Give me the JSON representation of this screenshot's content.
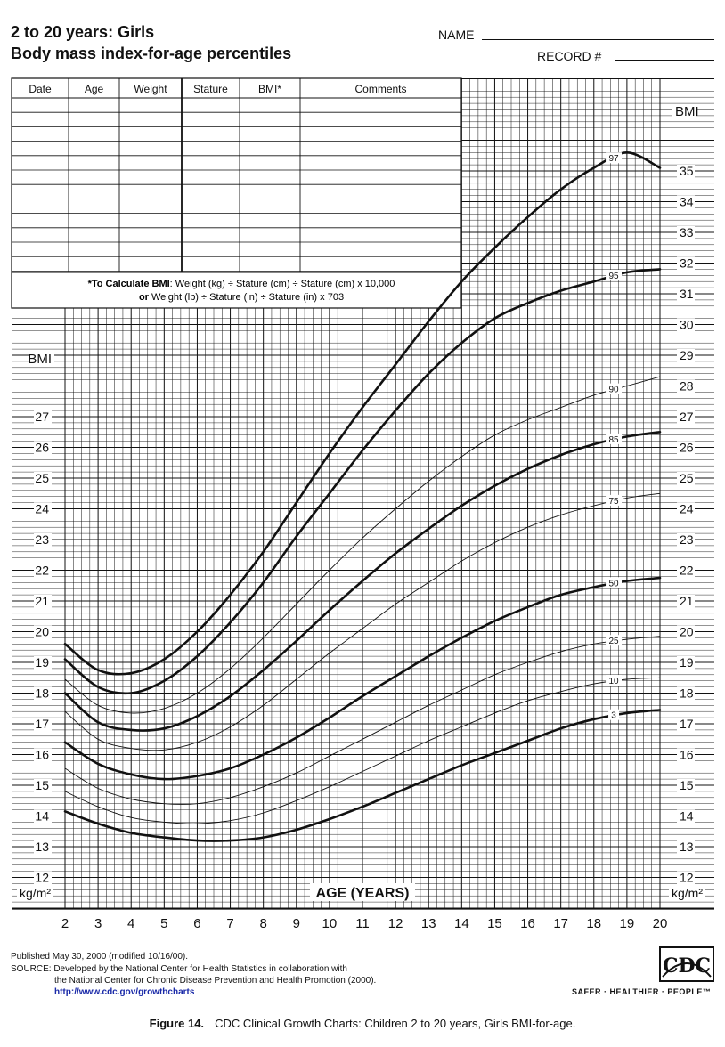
{
  "header": {
    "title_line1": "2 to 20 years: Girls",
    "title_line2": "Body mass index-for-age percentiles",
    "name_label": "NAME",
    "record_label": "RECORD #"
  },
  "record_table": {
    "columns": [
      "Date",
      "Age",
      "Weight",
      "Stature",
      "BMI*",
      "Comments"
    ],
    "blank_rows": 12,
    "formula_line1_bold": "*To Calculate BMI",
    "formula_line1_rest": ": Weight (kg) ÷ Stature (cm) ÷ Stature (cm) x 10,000",
    "formula_line2_bold": "or",
    "formula_line2_rest": " Weight (lb) ÷ Stature (in) ÷ Stature (in) x 703"
  },
  "chart_data": {
    "type": "line",
    "xlabel": "AGE (YEARS)",
    "ylabel": "BMI",
    "unit_label": "kg/m²",
    "xlim": [
      2,
      20
    ],
    "ylim": [
      11,
      36
    ],
    "x_ticks": [
      2,
      3,
      4,
      5,
      6,
      7,
      8,
      9,
      10,
      11,
      12,
      13,
      14,
      15,
      16,
      17,
      18,
      19,
      20
    ],
    "y_ticks_right": [
      12,
      13,
      14,
      15,
      16,
      17,
      18,
      19,
      20,
      21,
      22,
      23,
      24,
      25,
      26,
      27,
      28,
      29,
      30,
      31,
      32,
      33,
      34,
      35
    ],
    "y_ticks_left": [
      12,
      13,
      14,
      15,
      16,
      17,
      18,
      19,
      20,
      21,
      22,
      23,
      24,
      25,
      26,
      27
    ],
    "grid": true,
    "x": [
      2,
      3,
      4,
      5,
      6,
      7,
      8,
      9,
      10,
      11,
      12,
      13,
      14,
      15,
      16,
      17,
      18,
      19,
      20
    ],
    "series": [
      {
        "name": "97",
        "values": [
          19.6,
          18.75,
          18.65,
          19.1,
          20.0,
          21.2,
          22.6,
          24.2,
          25.8,
          27.3,
          28.7,
          30.1,
          31.4,
          32.5,
          33.5,
          34.4,
          35.1,
          35.6,
          35.1
        ],
        "bold": true
      },
      {
        "name": "95",
        "values": [
          19.1,
          18.2,
          18.0,
          18.4,
          19.2,
          20.3,
          21.6,
          23.1,
          24.5,
          25.9,
          27.2,
          28.4,
          29.4,
          30.2,
          30.7,
          31.1,
          31.4,
          31.7,
          31.8
        ],
        "bold": true
      },
      {
        "name": "90",
        "values": [
          18.45,
          17.6,
          17.35,
          17.5,
          18.0,
          18.8,
          19.8,
          20.9,
          22.0,
          23.05,
          24.0,
          24.9,
          25.7,
          26.4,
          26.9,
          27.3,
          27.7,
          28.0,
          28.3
        ],
        "bold": false
      },
      {
        "name": "85",
        "values": [
          18.0,
          17.05,
          16.8,
          16.85,
          17.25,
          17.9,
          18.75,
          19.7,
          20.7,
          21.65,
          22.55,
          23.35,
          24.1,
          24.75,
          25.3,
          25.75,
          26.1,
          26.35,
          26.5
        ],
        "bold": true
      },
      {
        "name": "75",
        "values": [
          17.4,
          16.5,
          16.2,
          16.15,
          16.4,
          16.9,
          17.6,
          18.45,
          19.3,
          20.1,
          20.9,
          21.6,
          22.3,
          22.9,
          23.4,
          23.8,
          24.1,
          24.35,
          24.5
        ],
        "bold": false
      },
      {
        "name": "50",
        "values": [
          16.4,
          15.7,
          15.35,
          15.2,
          15.3,
          15.55,
          16.0,
          16.55,
          17.2,
          17.9,
          18.55,
          19.2,
          19.8,
          20.35,
          20.8,
          21.2,
          21.45,
          21.65,
          21.75
        ],
        "bold": true
      },
      {
        "name": "25",
        "values": [
          15.55,
          14.9,
          14.55,
          14.4,
          14.4,
          14.6,
          14.95,
          15.4,
          15.95,
          16.5,
          17.05,
          17.6,
          18.1,
          18.6,
          19.0,
          19.35,
          19.6,
          19.75,
          19.85
        ],
        "bold": false
      },
      {
        "name": "10",
        "values": [
          14.8,
          14.3,
          13.95,
          13.8,
          13.75,
          13.85,
          14.1,
          14.5,
          14.95,
          15.45,
          15.95,
          16.45,
          16.9,
          17.35,
          17.75,
          18.05,
          18.3,
          18.45,
          18.5
        ],
        "bold": false
      },
      {
        "name": "3",
        "values": [
          14.15,
          13.75,
          13.45,
          13.3,
          13.2,
          13.2,
          13.3,
          13.55,
          13.9,
          14.3,
          14.75,
          15.2,
          15.65,
          16.05,
          16.45,
          16.85,
          17.15,
          17.35,
          17.45
        ],
        "bold": true
      }
    ]
  },
  "footer": {
    "line1": "Published May 30, 2000 (modified 10/16/00).",
    "line2": "SOURCE: Developed by the National Center for Health Statistics in collaboration with",
    "line3": "the National Center for Chronic Disease Prevention and Health Promotion (2000).",
    "url": "http://www.cdc.gov/growthcharts",
    "logo_text": "CDC",
    "tagline": "SAFER · HEALTHIER · PEOPLE™"
  },
  "caption": {
    "figure": "Figure 14.",
    "text": "CDC Clinical Growth Charts: Children 2 to 20 years, Girls BMI-for-age."
  }
}
